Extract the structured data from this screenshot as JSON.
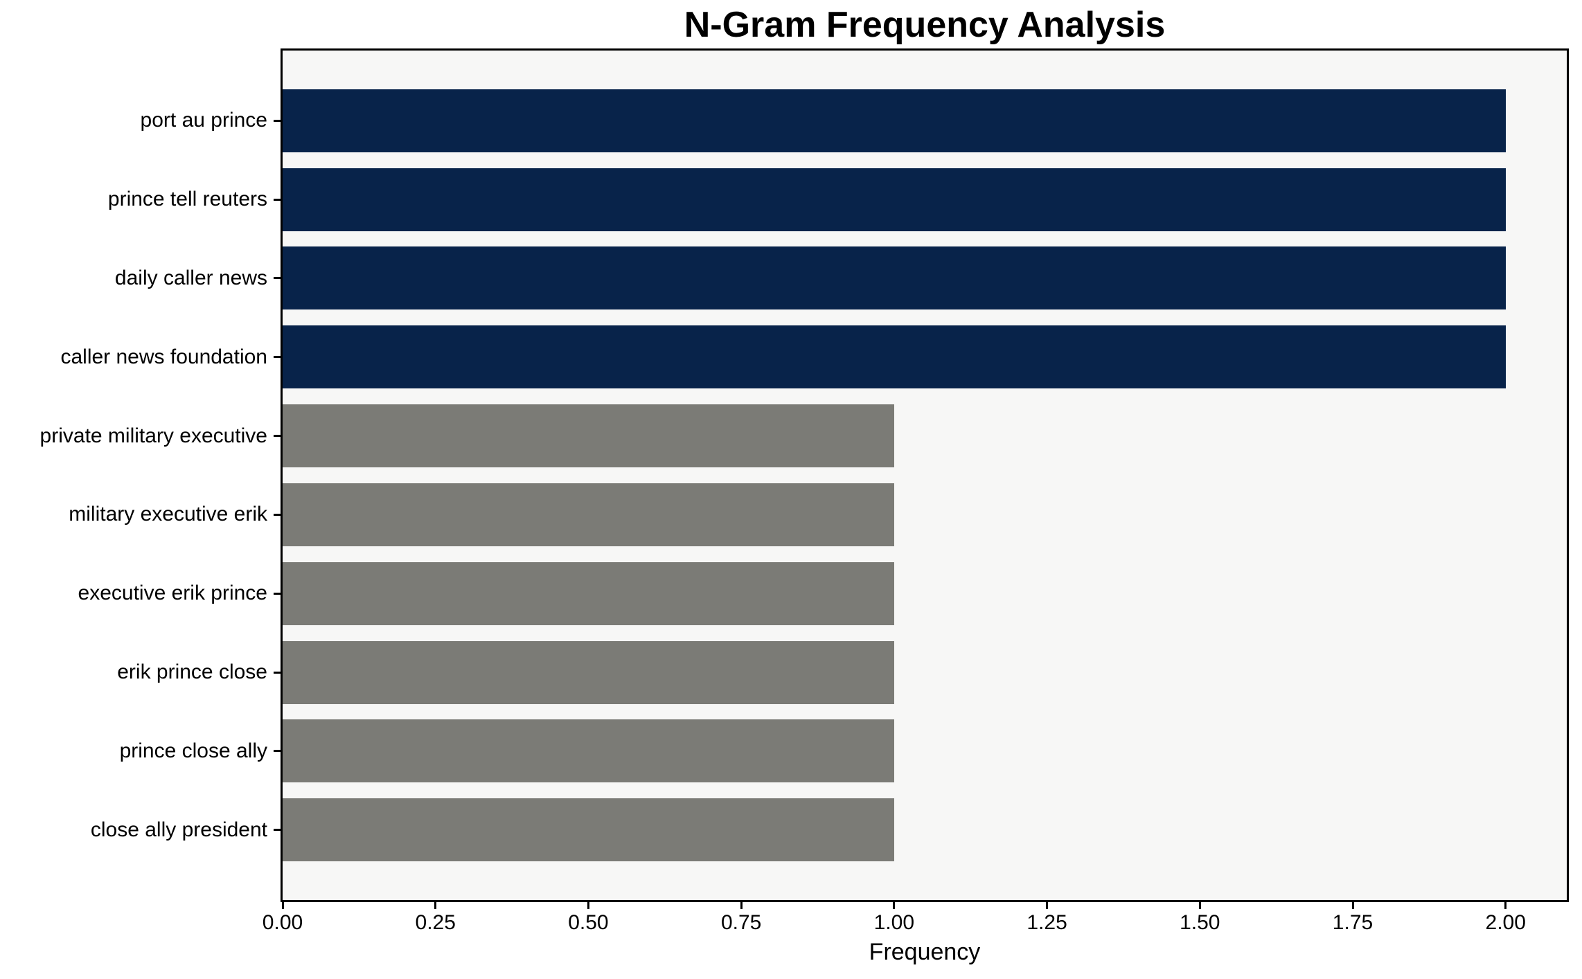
{
  "chart_data": {
    "type": "bar",
    "orientation": "horizontal",
    "title": "N-Gram Frequency Analysis",
    "xlabel": "Frequency",
    "ylabel": "",
    "categories": [
      "port au prince",
      "prince tell reuters",
      "daily caller news",
      "caller news foundation",
      "private military executive",
      "military executive erik",
      "executive erik prince",
      "erik prince close",
      "prince close ally",
      "close ally president"
    ],
    "values": [
      2,
      2,
      2,
      2,
      1,
      1,
      1,
      1,
      1,
      1
    ],
    "bar_colors": [
      "#08234a",
      "#08234a",
      "#08234a",
      "#08234a",
      "#7b7b76",
      "#7b7b76",
      "#7b7b76",
      "#7b7b76",
      "#7b7b76",
      "#7b7b76"
    ],
    "xlim": [
      0,
      2.1
    ],
    "xticks": [
      0,
      0.25,
      0.5,
      0.75,
      1.0,
      1.25,
      1.5,
      1.75,
      2.0
    ],
    "xtick_labels": [
      "0.00",
      "0.25",
      "0.50",
      "0.75",
      "1.00",
      "1.25",
      "1.50",
      "1.75",
      "2.00"
    ],
    "bar_height_fraction": 0.8,
    "grid": false,
    "legend": null
  },
  "colors": {
    "navy": "#08234a",
    "gray": "#7b7b76",
    "plot_bg": "#f7f7f6",
    "figure_bg": "#ffffff",
    "axis_frame": "#000000",
    "text": "#000000"
  }
}
